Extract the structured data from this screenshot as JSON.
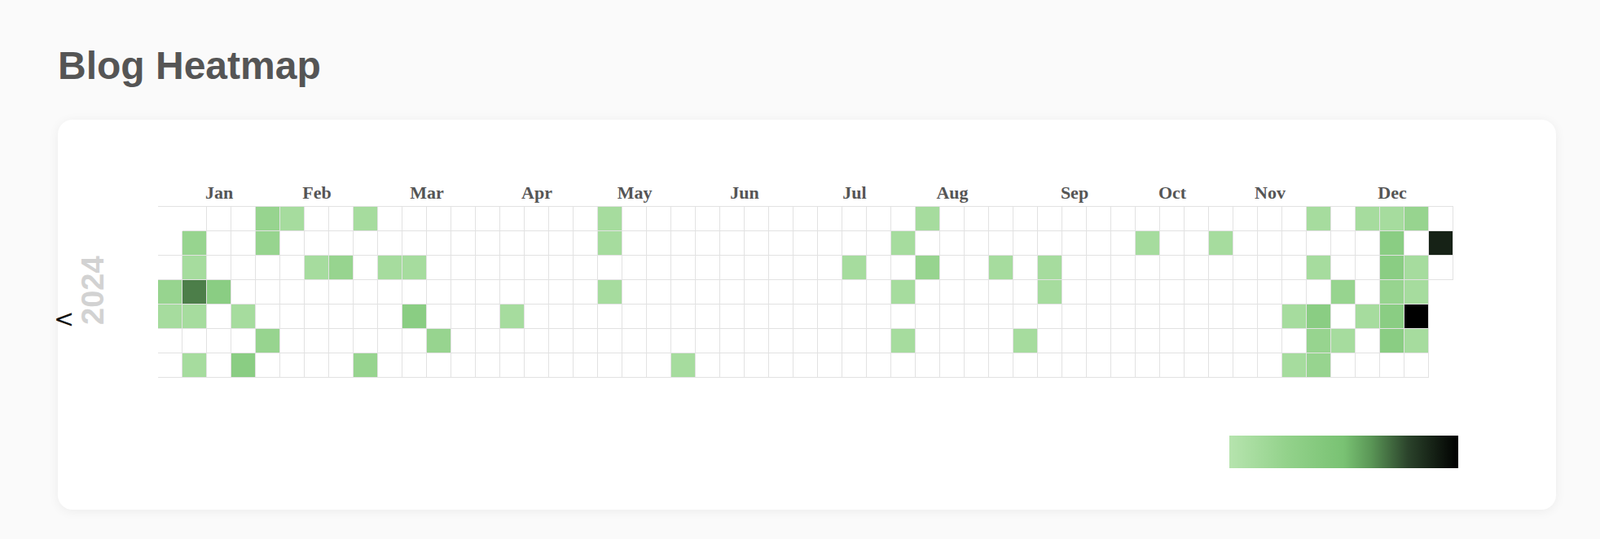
{
  "chart_data": {
    "type": "heatmap",
    "title": "Blog Heatmap",
    "year_label": "2024",
    "navigation": "<",
    "xlim": [
      -0.5,
      52.5
    ],
    "xticks": [
      {
        "value": 2,
        "label": "Jan"
      },
      {
        "value": 6,
        "label": "Feb"
      },
      {
        "value": 10.5,
        "label": "Mar"
      },
      {
        "value": 15,
        "label": "Apr"
      },
      {
        "value": 19,
        "label": "May"
      },
      {
        "value": 23.5,
        "label": "Jun"
      },
      {
        "value": 28,
        "label": "Jul"
      },
      {
        "value": 32,
        "label": "Aug"
      },
      {
        "value": 37,
        "label": "Sep"
      },
      {
        "value": 41,
        "label": "Oct"
      },
      {
        "value": 45,
        "label": "Nov"
      },
      {
        "value": 50,
        "label": "Dec"
      }
    ],
    "tick_labels": "x",
    "color_range": [
      1,
      10
    ],
    "cells": [
      [
        null,
        0,
        0,
        0,
        3,
        2,
        0,
        0,
        2,
        0,
        0,
        0,
        0,
        0,
        0,
        0,
        0,
        0,
        2,
        0,
        0,
        0,
        0,
        0,
        0,
        0,
        0,
        0,
        0,
        0,
        0,
        2,
        0,
        0,
        0,
        0,
        0,
        0,
        0,
        0,
        0,
        0,
        0,
        0,
        0,
        0,
        0,
        2,
        0,
        2,
        2,
        3,
        0
      ],
      [
        0,
        3,
        0,
        0,
        3,
        0,
        0,
        0,
        0,
        0,
        0,
        0,
        0,
        0,
        0,
        0,
        0,
        0,
        2,
        0,
        0,
        0,
        0,
        0,
        0,
        0,
        0,
        0,
        0,
        0,
        2,
        0,
        0,
        0,
        0,
        0,
        0,
        0,
        0,
        0,
        2,
        0,
        0,
        2,
        0,
        0,
        0,
        0,
        0,
        0,
        4,
        0,
        9
      ],
      [
        0,
        2,
        0,
        0,
        0,
        0,
        2,
        3,
        0,
        2,
        2,
        0,
        0,
        0,
        0,
        0,
        0,
        0,
        0,
        0,
        0,
        0,
        0,
        0,
        0,
        0,
        0,
        0,
        2,
        0,
        0,
        3,
        0,
        0,
        2,
        0,
        2,
        0,
        0,
        0,
        0,
        0,
        0,
        0,
        0,
        0,
        0,
        2,
        0,
        0,
        4,
        2,
        0
      ],
      [
        3,
        7,
        4,
        0,
        0,
        0,
        0,
        0,
        0,
        0,
        0,
        0,
        0,
        0,
        0,
        0,
        0,
        0,
        2,
        0,
        0,
        0,
        0,
        0,
        0,
        0,
        0,
        0,
        0,
        0,
        2,
        0,
        0,
        0,
        0,
        0,
        2,
        0,
        0,
        0,
        0,
        0,
        0,
        0,
        0,
        0,
        0,
        0,
        3,
        0,
        3,
        2,
        null
      ],
      [
        2,
        2,
        0,
        2,
        0,
        0,
        0,
        0,
        0,
        0,
        4,
        0,
        0,
        0,
        2,
        0,
        0,
        0,
        0,
        0,
        0,
        0,
        0,
        0,
        0,
        0,
        0,
        0,
        0,
        0,
        0,
        0,
        0,
        0,
        0,
        0,
        0,
        0,
        0,
        0,
        0,
        0,
        0,
        0,
        0,
        0,
        2,
        4,
        0,
        2,
        4,
        10,
        null
      ],
      [
        0,
        0,
        0,
        0,
        3,
        0,
        0,
        0,
        0,
        0,
        0,
        3,
        0,
        0,
        0,
        0,
        0,
        0,
        0,
        0,
        0,
        0,
        0,
        0,
        0,
        0,
        0,
        0,
        0,
        0,
        2,
        0,
        0,
        0,
        0,
        2,
        0,
        0,
        0,
        0,
        0,
        0,
        0,
        0,
        0,
        0,
        0,
        3,
        2,
        0,
        4,
        2,
        null
      ],
      [
        0,
        2,
        0,
        4,
        0,
        0,
        0,
        0,
        3,
        0,
        0,
        0,
        0,
        0,
        0,
        0,
        0,
        0,
        0,
        0,
        0,
        2,
        0,
        0,
        0,
        0,
        0,
        0,
        0,
        0,
        0,
        0,
        0,
        0,
        0,
        0,
        0,
        0,
        0,
        0,
        0,
        0,
        0,
        0,
        0,
        0,
        2,
        3,
        0,
        0,
        0,
        0,
        null
      ]
    ]
  }
}
